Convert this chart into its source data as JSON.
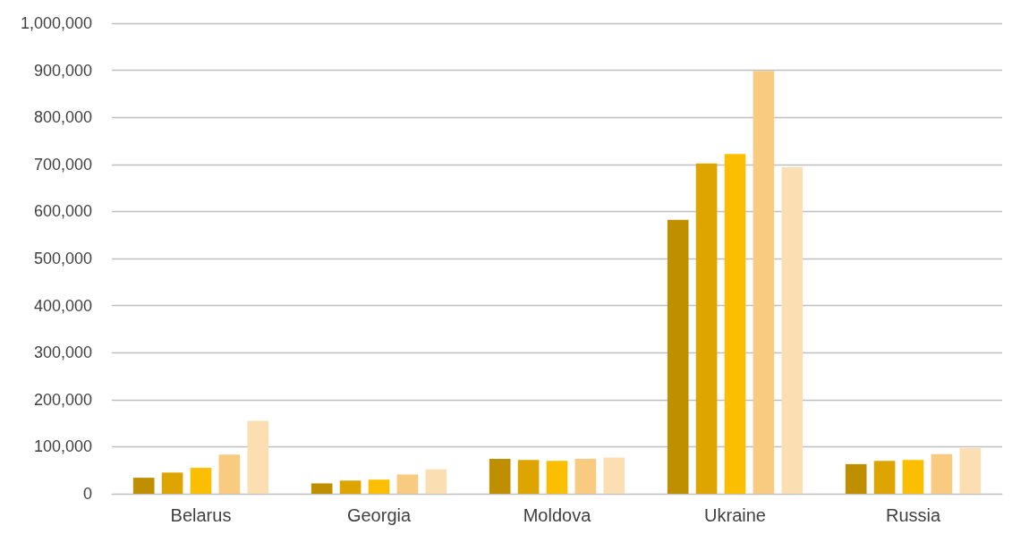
{
  "chart_data": {
    "type": "bar",
    "categories": [
      "Belarus",
      "Georgia",
      "Moldova",
      "Ukraine",
      "Russia"
    ],
    "series": [
      {
        "color": "#bf8f00",
        "values": [
          34000,
          22000,
          74000,
          582000,
          63000
        ]
      },
      {
        "color": "#dea400",
        "values": [
          45000,
          28000,
          72000,
          702000,
          70000
        ]
      },
      {
        "color": "#fbbe00",
        "values": [
          55000,
          30000,
          70000,
          722000,
          72000
        ]
      },
      {
        "color": "#f9cb80",
        "values": [
          83000,
          41000,
          74000,
          899000,
          84000
        ]
      },
      {
        "color": "#fcdeb3",
        "values": [
          155000,
          52000,
          77000,
          694000,
          97000
        ]
      }
    ],
    "ylim": [
      0,
      1000000
    ],
    "yticks": [
      0,
      {
        "value": 100000,
        "label": "100,000"
      },
      {
        "value": 200000,
        "label": "200,000"
      },
      {
        "value": 300000,
        "label": "300,000"
      },
      {
        "value": 400000,
        "label": "400,000"
      },
      {
        "value": 500000,
        "label": "500,000"
      },
      {
        "value": 600000,
        "label": "600,000"
      },
      {
        "value": 700000,
        "label": "700,000"
      },
      {
        "value": 800000,
        "label": "800,000"
      },
      {
        "value": 900000,
        "label": "900,000"
      },
      {
        "value": 1000000,
        "label": "1,000,000"
      }
    ],
    "grid": "y"
  }
}
